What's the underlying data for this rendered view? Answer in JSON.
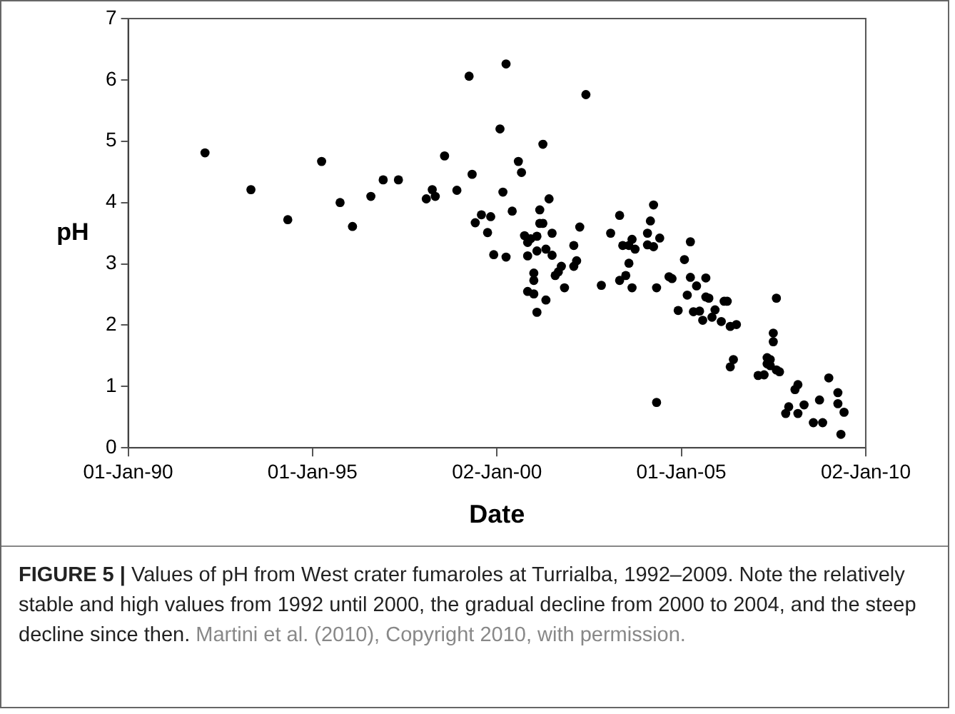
{
  "chart_data": {
    "type": "scatter",
    "xlabel": "Date",
    "ylabel": "pH",
    "xlim": [
      "1990-01-01",
      "2010-01-02"
    ],
    "xticks": [
      {
        "value": "1990-01-01",
        "label": "01-Jan-90"
      },
      {
        "value": "1995-01-01",
        "label": "01-Jan-95"
      },
      {
        "value": "2000-01-02",
        "label": "02-Jan-00"
      },
      {
        "value": "2005-01-01",
        "label": "01-Jan-05"
      },
      {
        "value": "2010-01-02",
        "label": "02-Jan-10"
      }
    ],
    "ylim": [
      0,
      7
    ],
    "yticks": [
      0,
      1,
      2,
      3,
      4,
      5,
      6,
      7
    ],
    "grid": false,
    "legend": false,
    "marker": "circle",
    "series": [
      {
        "color": "#000000",
        "x": [
          "1992-02",
          "1993-05",
          "1994-05",
          "1995-04",
          "1995-10",
          "1996-02",
          "1996-08",
          "1996-12",
          "1997-05",
          "1999-04",
          "2000-04",
          "2002-06",
          "2000-02",
          "2001-04",
          "1998-08",
          "2000-08",
          "2000-09",
          "1999-05",
          "1998-04",
          "1998-02",
          "1998-05",
          "1998-12",
          "2000-03",
          "2001-06",
          "2001-03",
          "2000-06",
          "1999-08",
          "1999-11",
          "1999-06",
          "2001-03",
          "2001-04",
          "2002-04",
          "1999-10",
          "2001-07",
          "2000-10",
          "2001-02",
          "2000-12",
          "2000-11",
          "2002-02",
          "2001-05",
          "2001-02",
          "1999-12",
          "2000-04",
          "2000-11",
          "2001-07",
          "2002-03",
          "2002-02",
          "2001-10",
          "2001-09",
          "2001-08",
          "2001-01",
          "2001-01",
          "2001-11",
          "2000-11",
          "2001-01",
          "2001-05",
          "2001-02",
          "2002-11",
          "2003-05",
          "2003-02",
          "2003-06",
          "2003-08",
          "2003-09",
          "2003-10",
          "2003-08",
          "2003-07",
          "2003-05",
          "2003-09",
          "2004-04",
          "2004-03",
          "2004-02",
          "2004-06",
          "2004-02",
          "2004-04",
          "2004-05",
          "2004-05",
          "2005-04",
          "2005-02",
          "2005-04",
          "2004-09",
          "2004-10",
          "2005-06",
          "2005-09",
          "2005-03",
          "2005-09",
          "2005-10",
          "2006-03",
          "2006-04",
          "2004-12",
          "2005-05",
          "2005-07",
          "2005-12",
          "2005-08",
          "2005-11",
          "2006-02",
          "2006-05",
          "2006-07",
          "2006-06",
          "2006-05",
          "2007-08",
          "2007-07",
          "2007-07",
          "2007-05",
          "2007-06",
          "2007-05",
          "2007-06",
          "2007-02",
          "2007-04",
          "2007-08",
          "2007-09",
          "2008-02",
          "2008-03",
          "2007-12",
          "2007-11",
          "2008-03",
          "2008-05",
          "2008-08",
          "2008-11",
          "2008-10",
          "2009-01",
          "2009-04",
          "2009-04",
          "2009-06",
          "2009-05"
        ],
        "values": [
          4.81,
          4.21,
          3.72,
          4.67,
          4.0,
          3.61,
          4.1,
          4.37,
          4.37,
          6.06,
          6.26,
          5.76,
          5.2,
          4.95,
          4.76,
          4.67,
          4.49,
          4.46,
          4.21,
          4.06,
          4.1,
          4.2,
          4.17,
          4.06,
          3.88,
          3.86,
          3.8,
          3.77,
          3.67,
          3.66,
          3.66,
          3.6,
          3.51,
          3.5,
          3.46,
          3.45,
          3.41,
          3.35,
          3.3,
          3.24,
          3.21,
          3.15,
          3.11,
          3.13,
          3.14,
          3.05,
          2.96,
          2.96,
          2.87,
          2.81,
          2.85,
          2.73,
          2.61,
          2.55,
          2.51,
          2.41,
          2.21,
          2.65,
          3.79,
          3.5,
          3.3,
          3.3,
          3.4,
          3.24,
          3.01,
          2.81,
          2.73,
          2.61,
          3.96,
          3.7,
          3.5,
          3.42,
          3.31,
          3.28,
          2.61,
          0.74,
          3.36,
          3.07,
          2.78,
          2.79,
          2.76,
          2.64,
          2.77,
          2.49,
          2.46,
          2.44,
          2.39,
          2.39,
          2.24,
          2.22,
          2.23,
          2.25,
          2.08,
          2.13,
          2.06,
          1.98,
          2.01,
          1.44,
          1.32,
          2.44,
          1.87,
          1.73,
          1.47,
          1.44,
          1.37,
          1.34,
          1.18,
          1.19,
          1.27,
          1.24,
          0.95,
          1.03,
          0.67,
          0.56,
          0.56,
          0.7,
          0.41,
          0.41,
          0.78,
          1.14,
          0.9,
          0.72,
          0.58,
          0.22
        ]
      }
    ],
    "annotations": [
      "FIGURE 5 | Values of pH from West crater fumaroles at Turrialba, 1992–2009. Note the relatively stable and high values from 1992 until 2000, the gradual decline from 2000 to 2004, and the steep decline since then.",
      "Martini et al. (2010), Copyright 2010, with permission."
    ]
  }
}
